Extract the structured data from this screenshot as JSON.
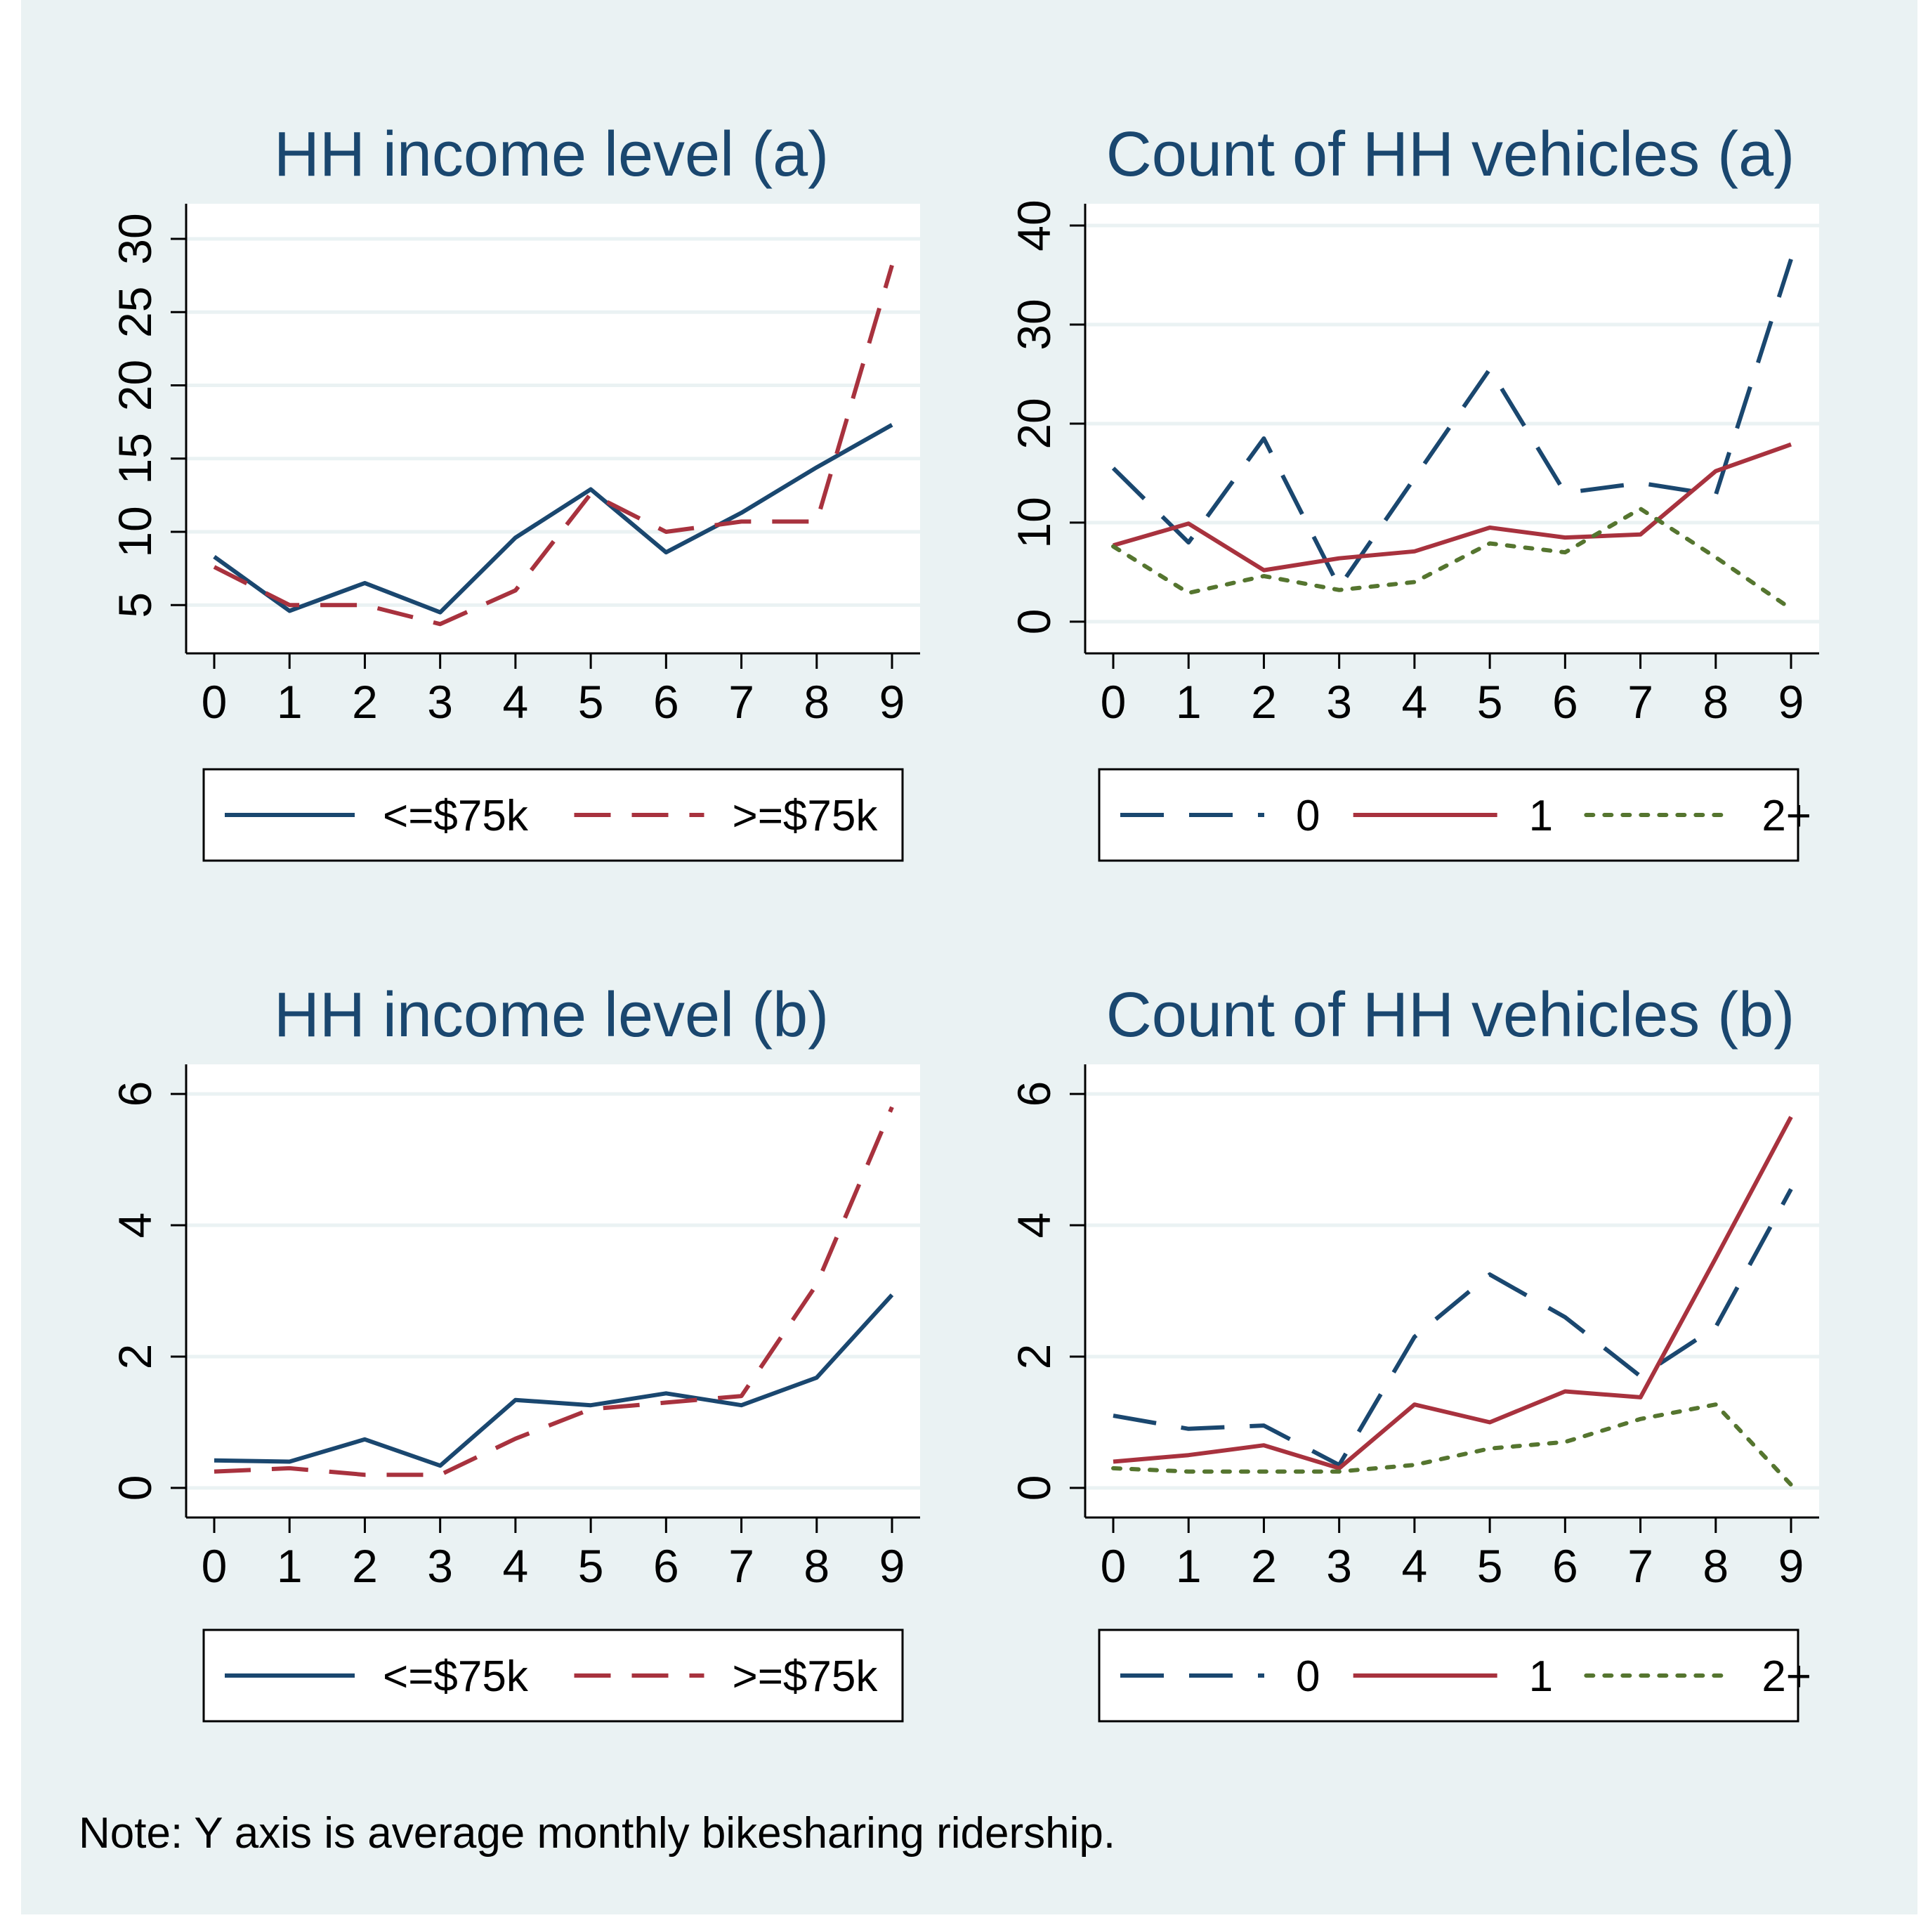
{
  "note": "Note: Y axis is average monthly bikesharing ridership.",
  "colors": {
    "background": "#eaf2f3",
    "plot_bg": "#ffffff",
    "grid": "#eaf2f3",
    "navy": "#1a476f",
    "maroon": "#a8323e",
    "green": "#55752f"
  },
  "chart_data": [
    {
      "type": "line",
      "title": "HH income level (a)",
      "x": [
        0,
        1,
        2,
        3,
        4,
        5,
        6,
        7,
        8,
        9
      ],
      "ylim": [
        1.7,
        32.4
      ],
      "yticks": [
        5,
        10,
        15,
        20,
        25,
        30
      ],
      "ytick_labels": [
        "5",
        "10",
        "15",
        "20",
        "25",
        "30"
      ],
      "xtick_labels": [
        "0",
        "1",
        "2",
        "3",
        "4",
        "5",
        "6",
        "7",
        "8",
        "9"
      ],
      "grid": true,
      "legend_position": "bottom",
      "series": [
        {
          "name": "<=$75k",
          "style": "solid",
          "color": "#1a476f",
          "values": [
            8.3,
            4.6,
            6.5,
            4.5,
            9.6,
            12.9,
            8.6,
            11.3,
            14.4,
            17.3
          ]
        },
        {
          "name": ">=$75k",
          "style": "dash",
          "color": "#a8323e",
          "values": [
            7.6,
            5.0,
            5.0,
            3.7,
            6.0,
            12.6,
            10.0,
            10.7,
            10.7,
            28.2
          ]
        }
      ]
    },
    {
      "type": "line",
      "title": "Count of HH vehicles (a)",
      "x": [
        0,
        1,
        2,
        3,
        4,
        5,
        6,
        7,
        8,
        9
      ],
      "ylim": [
        -3.2,
        42.2
      ],
      "yticks": [
        0,
        10,
        20,
        30,
        40
      ],
      "ytick_labels": [
        "0",
        "10",
        "20",
        "30",
        "40"
      ],
      "xtick_labels": [
        "0",
        "1",
        "2",
        "3",
        "4",
        "5",
        "6",
        "7",
        "8",
        "9"
      ],
      "grid": true,
      "legend_position": "bottom",
      "series": [
        {
          "name": "0",
          "style": "longdash",
          "color": "#1a476f",
          "values": [
            15.5,
            8.0,
            18.5,
            3.5,
            14.5,
            25.5,
            13.0,
            14.0,
            12.8,
            36.6
          ]
        },
        {
          "name": "1",
          "style": "solid",
          "color": "#a8323e",
          "values": [
            7.7,
            9.9,
            5.2,
            6.4,
            7.1,
            9.5,
            8.5,
            8.8,
            15.2,
            17.9
          ]
        },
        {
          "name": "2+",
          "style": "dot",
          "color": "#55752f",
          "values": [
            7.6,
            2.9,
            4.6,
            3.2,
            4.0,
            7.9,
            7.0,
            11.4,
            6.5,
            1.3
          ]
        }
      ]
    },
    {
      "type": "line",
      "title": "HH income level (b)",
      "x": [
        0,
        1,
        2,
        3,
        4,
        5,
        6,
        7,
        8,
        9
      ],
      "ylim": [
        -0.45,
        6.45
      ],
      "yticks": [
        0,
        2,
        4,
        6
      ],
      "ytick_labels": [
        "0",
        "2",
        "4",
        "6"
      ],
      "xtick_labels": [
        "0",
        "1",
        "2",
        "3",
        "4",
        "5",
        "6",
        "7",
        "8",
        "9"
      ],
      "grid": true,
      "legend_position": "bottom",
      "series": [
        {
          "name": "<=$75k",
          "style": "solid",
          "color": "#1a476f",
          "values": [
            0.42,
            0.4,
            0.74,
            0.34,
            1.34,
            1.26,
            1.44,
            1.26,
            1.68,
            2.94
          ]
        },
        {
          "name": ">=$75k",
          "style": "dash",
          "color": "#a8323e",
          "values": [
            0.25,
            0.3,
            0.2,
            0.2,
            0.75,
            1.2,
            1.3,
            1.4,
            3.1,
            5.8
          ]
        }
      ]
    },
    {
      "type": "line",
      "title": "Count of HH vehicles (b)",
      "x": [
        0,
        1,
        2,
        3,
        4,
        5,
        6,
        7,
        8,
        9
      ],
      "ylim": [
        -0.45,
        6.45
      ],
      "yticks": [
        0,
        2,
        4,
        6
      ],
      "ytick_labels": [
        "0",
        "2",
        "4",
        "6"
      ],
      "xtick_labels": [
        "0",
        "1",
        "2",
        "3",
        "4",
        "5",
        "6",
        "7",
        "8",
        "9"
      ],
      "grid": true,
      "legend_position": "bottom",
      "series": [
        {
          "name": "0",
          "style": "longdash",
          "color": "#1a476f",
          "values": [
            1.1,
            0.9,
            0.95,
            0.35,
            2.3,
            3.25,
            2.6,
            1.7,
            2.45,
            4.55
          ]
        },
        {
          "name": "1",
          "style": "solid",
          "color": "#a8323e",
          "values": [
            0.4,
            0.5,
            0.65,
            0.3,
            1.27,
            1.0,
            1.47,
            1.38,
            3.5,
            5.65
          ]
        },
        {
          "name": "2+",
          "style": "dot",
          "color": "#55752f",
          "values": [
            0.3,
            0.25,
            0.25,
            0.25,
            0.35,
            0.6,
            0.7,
            1.05,
            1.27,
            0.05
          ]
        }
      ]
    }
  ]
}
